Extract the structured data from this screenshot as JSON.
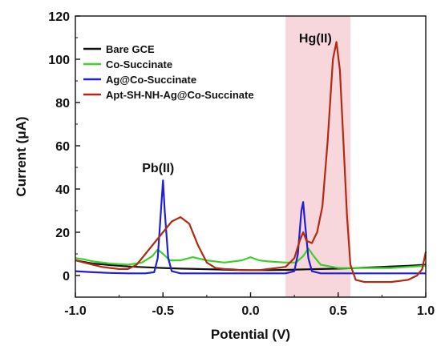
{
  "chart_data": {
    "type": "line",
    "title": "",
    "xlabel": "Potential (V)",
    "ylabel": "Current (μA)",
    "xlim": [
      -1.0,
      1.0
    ],
    "ylim": [
      -10,
      120
    ],
    "xticks": [
      "-1.0",
      "-0.5",
      "0.0",
      "0.5",
      "1.0"
    ],
    "yticks": [
      "0",
      "20",
      "40",
      "60",
      "80",
      "100",
      "120"
    ],
    "legend_position": "top-left",
    "highlight_region": {
      "x_start": 0.2,
      "x_end": 0.57,
      "color": "#f7d6dc"
    },
    "annotations": [
      {
        "text": "Pb(II)",
        "x": -0.5,
        "y": 47
      },
      {
        "text": "Hg(II)",
        "x": 0.37,
        "y": 113
      }
    ],
    "series": [
      {
        "name": "Bare GCE",
        "color": "#111111",
        "x": [
          -1.0,
          -0.9,
          -0.8,
          -0.7,
          -0.6,
          -0.5,
          -0.4,
          -0.3,
          -0.2,
          -0.1,
          0.0,
          0.1,
          0.2,
          0.3,
          0.4,
          0.5,
          0.6,
          0.7,
          0.8,
          0.9,
          1.0
        ],
        "y": [
          7,
          5.5,
          4.8,
          4.2,
          3.8,
          3.5,
          3.2,
          3.0,
          2.8,
          2.6,
          2.5,
          2.5,
          2.6,
          2.8,
          3.0,
          3.2,
          3.5,
          3.8,
          4.2,
          4.5,
          5
        ]
      },
      {
        "name": "Co-Succinate",
        "color": "#3fcf2a",
        "x": [
          -1.0,
          -0.95,
          -0.9,
          -0.8,
          -0.7,
          -0.62,
          -0.56,
          -0.53,
          -0.5,
          -0.46,
          -0.4,
          -0.33,
          -0.25,
          -0.15,
          -0.05,
          0.0,
          0.05,
          0.1,
          0.2,
          0.26,
          0.3,
          0.33,
          0.36,
          0.4,
          0.5,
          0.6,
          0.7,
          0.8,
          0.9,
          1.0
        ],
        "y": [
          8,
          7.5,
          6.5,
          5.5,
          5,
          6,
          9,
          12,
          10,
          7,
          7,
          8.5,
          7,
          6,
          7,
          8.5,
          7,
          6.5,
          6,
          6,
          9,
          12.5,
          9,
          5,
          3.5,
          3.5,
          3.5,
          3.5,
          4,
          4.5
        ]
      },
      {
        "name": "Ag@Co-Succinate",
        "color": "#2020d0",
        "x": [
          -1.0,
          -0.9,
          -0.8,
          -0.7,
          -0.6,
          -0.55,
          -0.53,
          -0.51,
          -0.5,
          -0.49,
          -0.47,
          -0.45,
          -0.4,
          -0.3,
          -0.2,
          -0.1,
          0.0,
          0.1,
          0.2,
          0.25,
          0.27,
          0.29,
          0.3,
          0.31,
          0.33,
          0.35,
          0.4,
          0.5,
          0.6,
          0.7,
          0.8,
          0.9,
          1.0
        ],
        "y": [
          2,
          1.5,
          1.2,
          1,
          1,
          1.5,
          8,
          32,
          44,
          30,
          8,
          2,
          1,
          1,
          1,
          1,
          1,
          1,
          1,
          2,
          10,
          30,
          34,
          25,
          8,
          2,
          1,
          1,
          1,
          1,
          1,
          1,
          1
        ]
      },
      {
        "name": "Apt-SH-NH-Ag@Co-Succinate",
        "color": "#b22a12",
        "x": [
          -1.0,
          -0.95,
          -0.9,
          -0.85,
          -0.8,
          -0.75,
          -0.7,
          -0.65,
          -0.6,
          -0.55,
          -0.5,
          -0.45,
          -0.4,
          -0.35,
          -0.3,
          -0.25,
          -0.2,
          -0.15,
          -0.1,
          -0.05,
          0.0,
          0.05,
          0.1,
          0.15,
          0.2,
          0.25,
          0.28,
          0.3,
          0.32,
          0.35,
          0.38,
          0.41,
          0.44,
          0.47,
          0.49,
          0.51,
          0.53,
          0.55,
          0.57,
          0.6,
          0.65,
          0.7,
          0.75,
          0.8,
          0.85,
          0.9,
          0.95,
          0.98,
          1.0
        ],
        "y": [
          7,
          6,
          5,
          4,
          3.5,
          3,
          3,
          5,
          10,
          15,
          20,
          25,
          27,
          24,
          14,
          6,
          3.5,
          3,
          2.8,
          2.5,
          2.5,
          2.5,
          3,
          3.5,
          4,
          8,
          16,
          20,
          16,
          15,
          20,
          32,
          62,
          100,
          108,
          95,
          62,
          28,
          5,
          -2,
          -3,
          -3,
          -3,
          -3,
          -2.5,
          -2,
          0,
          3,
          11
        ]
      }
    ]
  }
}
